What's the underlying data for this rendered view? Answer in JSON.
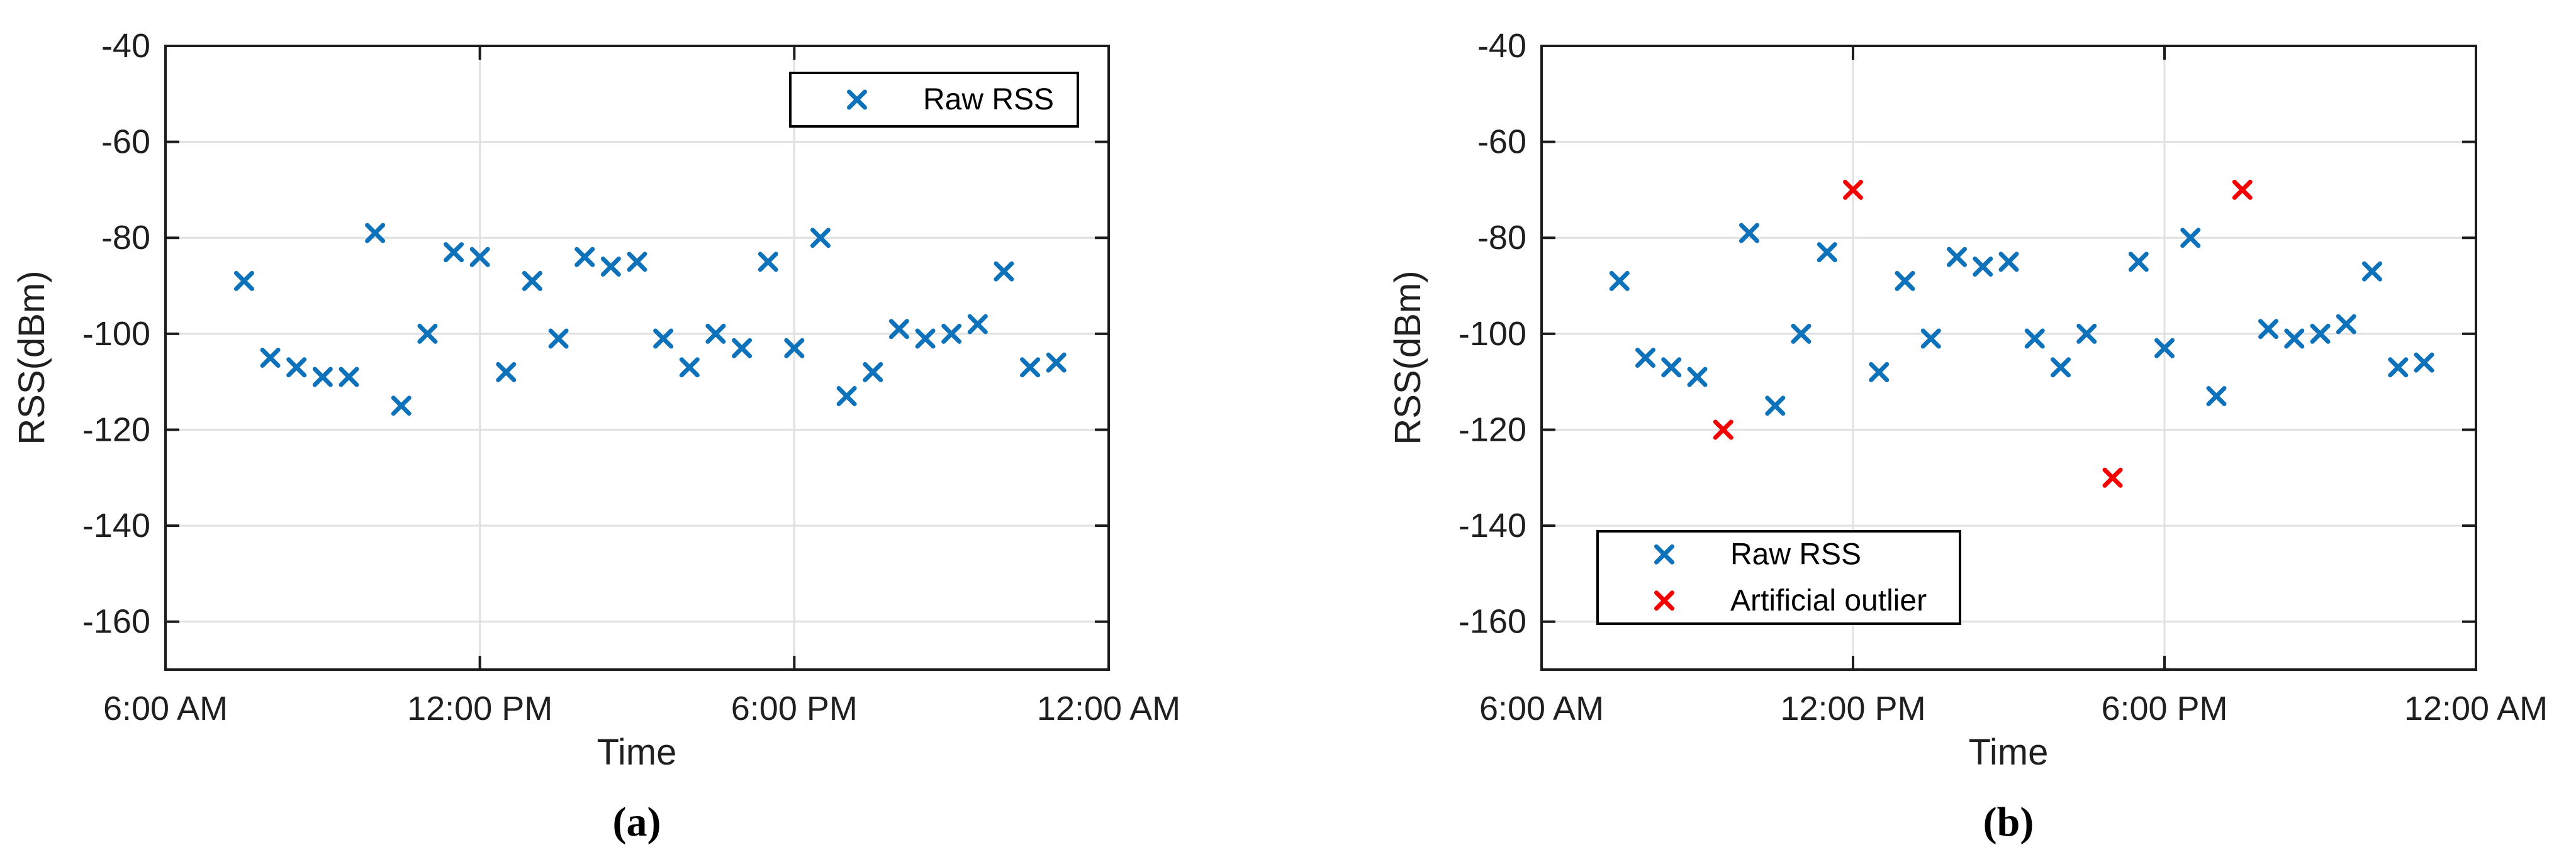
{
  "figure": {
    "background": "#ffffff",
    "caption_left": "(a)",
    "caption_right": "(b)"
  },
  "style": {
    "axis_color": "#1c1c1c",
    "grid_color": "#e0e0e0",
    "text_color": "#1f1f1f",
    "raw_color": "#0e72ba",
    "outlier_color": "#f40000"
  },
  "chart_data": [
    {
      "panel": "a",
      "type": "scatter",
      "caption": "(a)",
      "xlabel": "Time",
      "ylabel": "RSS(dBm)",
      "x_unit": "hour of day",
      "y_unit": "dBm",
      "xlim": [
        6,
        24
      ],
      "ylim": [
        -170,
        -40
      ],
      "grid": true,
      "xticks": [
        {
          "value": 6,
          "label": "6:00 AM"
        },
        {
          "value": 12,
          "label": "12:00 PM"
        },
        {
          "value": 18,
          "label": "6:00 PM"
        },
        {
          "value": 24,
          "label": "12:00 AM"
        }
      ],
      "yticks": [
        {
          "value": -160,
          "label": "-160"
        },
        {
          "value": -140,
          "label": "-140"
        },
        {
          "value": -120,
          "label": "-120"
        },
        {
          "value": -100,
          "label": "-100"
        },
        {
          "value": -80,
          "label": "-80"
        },
        {
          "value": -60,
          "label": "-60"
        },
        {
          "value": -40,
          "label": "-40"
        }
      ],
      "legend": {
        "location": "upper-right",
        "entries": [
          "Raw RSS"
        ]
      },
      "series": [
        {
          "name": "Raw RSS",
          "marker": "x",
          "color": "#0e72ba",
          "points": [
            [
              7.5,
              -89
            ],
            [
              8,
              -105
            ],
            [
              8.5,
              -107
            ],
            [
              9,
              -109
            ],
            [
              9.5,
              -109
            ],
            [
              10,
              -79
            ],
            [
              10.5,
              -115
            ],
            [
              11,
              -100
            ],
            [
              11.5,
              -83
            ],
            [
              12,
              -84
            ],
            [
              12.5,
              -108
            ],
            [
              13,
              -89
            ],
            [
              13.5,
              -101
            ],
            [
              14,
              -84
            ],
            [
              14.5,
              -86
            ],
            [
              15,
              -85
            ],
            [
              15.5,
              -101
            ],
            [
              16,
              -107
            ],
            [
              16.5,
              -100
            ],
            [
              17,
              -103
            ],
            [
              17.5,
              -85
            ],
            [
              18,
              -103
            ],
            [
              18.5,
              -80
            ],
            [
              19,
              -113
            ],
            [
              19.5,
              -108
            ],
            [
              20,
              -99
            ],
            [
              20.5,
              -101
            ],
            [
              21,
              -100
            ],
            [
              21.5,
              -98
            ],
            [
              22,
              -87
            ],
            [
              22.5,
              -107
            ],
            [
              23,
              -106
            ]
          ]
        }
      ]
    },
    {
      "panel": "b",
      "type": "scatter",
      "caption": "(b)",
      "xlabel": "Time",
      "ylabel": "RSS(dBm)",
      "x_unit": "hour of day",
      "y_unit": "dBm",
      "xlim": [
        6,
        24
      ],
      "ylim": [
        -170,
        -40
      ],
      "grid": true,
      "xticks": [
        {
          "value": 6,
          "label": "6:00 AM"
        },
        {
          "value": 12,
          "label": "12:00 PM"
        },
        {
          "value": 18,
          "label": "6:00 PM"
        },
        {
          "value": 24,
          "label": "12:00 AM"
        }
      ],
      "yticks": [
        {
          "value": -160,
          "label": "-160"
        },
        {
          "value": -140,
          "label": "-140"
        },
        {
          "value": -120,
          "label": "-120"
        },
        {
          "value": -100,
          "label": "-100"
        },
        {
          "value": -80,
          "label": "-80"
        },
        {
          "value": -60,
          "label": "-60"
        },
        {
          "value": -40,
          "label": "-40"
        }
      ],
      "legend": {
        "location": "lower-left",
        "entries": [
          "Raw RSS",
          "Artificial outlier"
        ]
      },
      "series": [
        {
          "name": "Raw RSS",
          "marker": "x",
          "color": "#0e72ba",
          "points": [
            [
              7.5,
              -89
            ],
            [
              8,
              -105
            ],
            [
              8.5,
              -107
            ],
            [
              9,
              -109
            ],
            [
              10,
              -79
            ],
            [
              10.5,
              -115
            ],
            [
              11,
              -100
            ],
            [
              11.5,
              -83
            ],
            [
              12.5,
              -108
            ],
            [
              13,
              -89
            ],
            [
              13.5,
              -101
            ],
            [
              14,
              -84
            ],
            [
              14.5,
              -86
            ],
            [
              15,
              -85
            ],
            [
              15.5,
              -101
            ],
            [
              16,
              -107
            ],
            [
              16.5,
              -100
            ],
            [
              17.5,
              -85
            ],
            [
              18,
              -103
            ],
            [
              18.5,
              -80
            ],
            [
              19,
              -113
            ],
            [
              20,
              -99
            ],
            [
              20.5,
              -101
            ],
            [
              21,
              -100
            ],
            [
              21.5,
              -98
            ],
            [
              22,
              -87
            ],
            [
              22.5,
              -107
            ],
            [
              23,
              -106
            ]
          ]
        },
        {
          "name": "Artificial outlier",
          "marker": "x",
          "color": "#f40000",
          "points": [
            [
              9.5,
              -120
            ],
            [
              12,
              -70
            ],
            [
              17,
              -130
            ],
            [
              19.5,
              -70
            ]
          ]
        }
      ]
    }
  ]
}
